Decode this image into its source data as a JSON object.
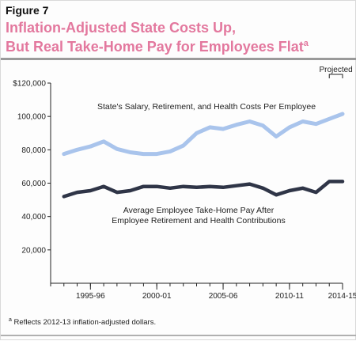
{
  "figure": {
    "label": "Figure 7",
    "title_line1": "Inflation-Adjusted State Costs Up,",
    "title_line2": "But Real Take-Home Pay for Employees Flat",
    "title_superscript": "a",
    "footnote_marker": "a",
    "footnote": "Reflects 2012-13 inflation-adjusted dollars."
  },
  "chart_data": {
    "type": "line",
    "x": [
      1994,
      1995,
      1996,
      1997,
      1998,
      1999,
      2000,
      2001,
      2002,
      2003,
      2004,
      2005,
      2006,
      2007,
      2008,
      2009,
      2010,
      2011,
      2012,
      2013,
      2014,
      2015
    ],
    "xlim": [
      1993,
      2015
    ],
    "x_ticks": [
      1996,
      2001,
      2006,
      2011,
      2015
    ],
    "x_tick_labels": [
      "1995-96",
      "2000-01",
      "2005-06",
      "2010-11",
      "2014-15"
    ],
    "ylim": [
      0,
      120000
    ],
    "y_ticks": [
      20000,
      40000,
      60000,
      80000,
      100000,
      120000
    ],
    "y_tick_labels": [
      "20,000",
      "40,000",
      "60,000",
      "80,000",
      "100,000",
      "$120,000"
    ],
    "grid": false,
    "projected_label": "Projected",
    "projected_range": [
      2014,
      2015
    ],
    "series": [
      {
        "name": "State's Salary, Retirement, and Health Costs Per Employee",
        "color": "#a9c4ec",
        "values": [
          77500,
          80000,
          82000,
          85000,
          80500,
          78500,
          77500,
          77500,
          79000,
          82500,
          90000,
          93500,
          92500,
          95000,
          97000,
          94500,
          88000,
          93500,
          97000,
          95500,
          98500,
          101500
        ]
      },
      {
        "name": "Average Employee Take-Home Pay After Employee Retirement and Health Contributions",
        "color": "#2f3547",
        "values": [
          52000,
          54500,
          55500,
          58000,
          54500,
          55500,
          58000,
          58000,
          57000,
          58000,
          57500,
          58000,
          57500,
          58500,
          59500,
          57000,
          53000,
          55500,
          57000,
          54500,
          61000,
          61000
        ]
      }
    ],
    "annotations": [
      "State's Salary, Retirement, and Health Costs Per Employee",
      "Average Employee Take-Home Pay After",
      "Employee Retirement and Health Contributions"
    ]
  }
}
